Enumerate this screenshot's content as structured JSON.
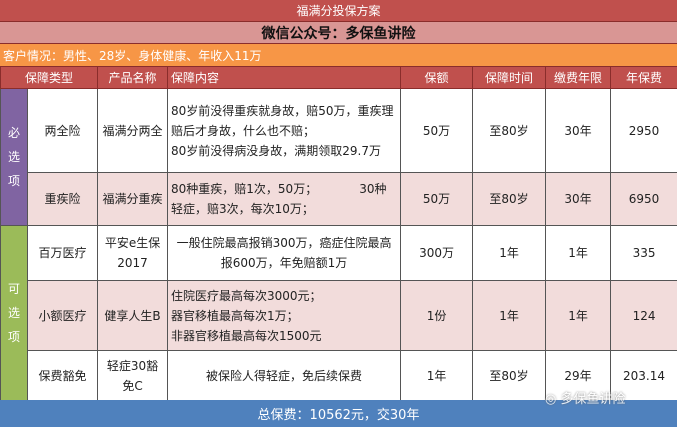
{
  "title": "福满分投保方案",
  "subtitle": "微信公众号：多保鱼讲险",
  "customer": "客户情况：男性、28岁、身体健康、年收入11万",
  "headers": [
    "保障类型",
    "产品名称",
    "保障内容",
    "保额",
    "保障时间",
    "缴费年限",
    "年保费"
  ],
  "groups": {
    "required": "必选项",
    "optional": "可选项"
  },
  "rows": [
    {
      "type": "两全险",
      "product": "福满分两全",
      "content": [
        "80岁前没得重疾就身故，赔50万，重疾理赔后才身故，什么也不赔；",
        "80岁前没得病没身故，满期领取29.7万"
      ],
      "amount": "50万",
      "term": "至80岁",
      "pay": "30年",
      "premium": "2950"
    },
    {
      "type": "重疾险",
      "product": "福满分重疾",
      "content": [
        "80种重疾，赔1次，50万；　　　　30种轻症，赔3次，每次10万；"
      ],
      "amount": "50万",
      "term": "至80岁",
      "pay": "30年",
      "premium": "6950"
    },
    {
      "type": "百万医疗",
      "product": "平安e生保2017",
      "content": [
        "一般住院最高报销300万，癌症住院最高报600万，年免赔额1万"
      ],
      "amount": "300万",
      "term": "1年",
      "pay": "1年",
      "premium": "335"
    },
    {
      "type": "小额医疗",
      "product": "健享人生B",
      "content": [
        "住院医疗最高每次3000元；",
        "器官移植最高每次1万；",
        "非器官移植最高每次1500元"
      ],
      "amount": "1份",
      "term": "1年",
      "pay": "1年",
      "premium": "124"
    },
    {
      "type": "保费豁免",
      "product": "轻症30豁免C",
      "content": [
        "被保险人得轻症，免后续保费"
      ],
      "amount": "1年",
      "term": "至80岁",
      "pay": "29年",
      "premium": "203.14"
    }
  ],
  "footer": "总保费：10562元，交30年",
  "watermark": "多保鱼讲险",
  "colors": {
    "title": "#c0504d",
    "subtitle": "#d99694",
    "customer": "#f79646",
    "required": "#8064a2",
    "optional": "#9bbb59",
    "footer": "#4f81bd",
    "alt_row": "#f2dcdb"
  }
}
